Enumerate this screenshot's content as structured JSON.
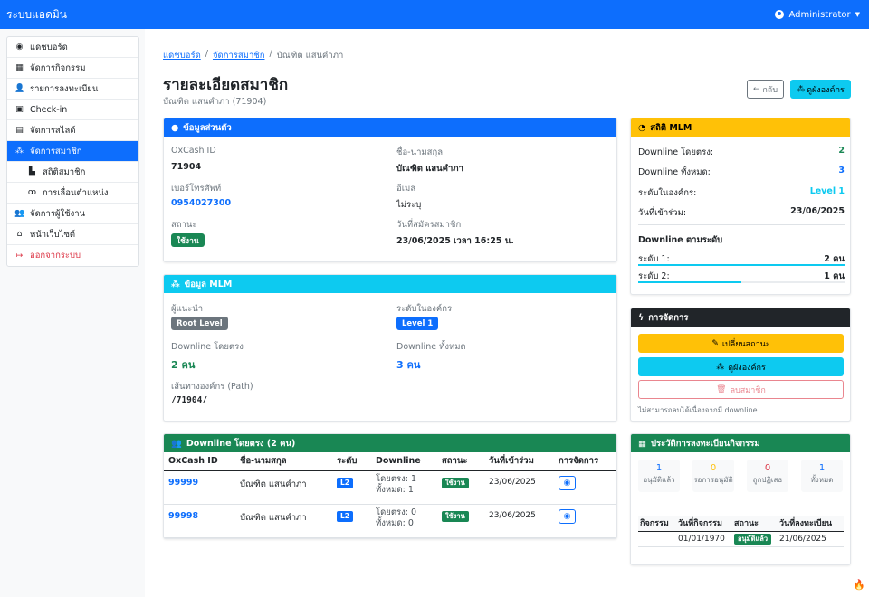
{
  "app": {
    "brand": "ระบบแอดมิน",
    "user": "Administrator"
  },
  "sidebar": {
    "items": [
      {
        "label": "แดชบอร์ด",
        "icon": "dashboard-icon",
        "glyph": "◉"
      },
      {
        "label": "จัดการกิจกรรม",
        "icon": "calendar-icon",
        "glyph": "▦"
      },
      {
        "label": "รายการลงทะเบียน",
        "icon": "user-check-icon",
        "glyph": "👤"
      },
      {
        "label": "Check-in",
        "icon": "qrcode-icon",
        "glyph": "▣"
      },
      {
        "label": "จัดการสไลด์",
        "icon": "images-icon",
        "glyph": "▤"
      },
      {
        "label": "จัดการสมาชิก",
        "icon": "sitemap-icon",
        "glyph": "⁂",
        "active": true
      },
      {
        "label": "สถิติสมาชิก",
        "icon": "chart-icon",
        "glyph": "▙",
        "sub": true
      },
      {
        "label": "การเลื่อนตำแหน่ง",
        "icon": "medal-icon",
        "glyph": "ꝏ",
        "sub": true
      },
      {
        "label": "จัดการผู้ใช้งาน",
        "icon": "users-cog-icon",
        "glyph": "👥"
      },
      {
        "label": "หน้าเว็บไซต์",
        "icon": "home-icon",
        "glyph": "⌂"
      },
      {
        "label": "ออกจากระบบ",
        "icon": "sign-out-icon",
        "glyph": "↦",
        "danger": true
      }
    ]
  },
  "breadcrumb": {
    "home": "แดชบอร์ด",
    "members": "จัดการสมาชิก",
    "current": "บัณฑิต แสนคำภา",
    "sep": "/"
  },
  "page": {
    "title": "รายละเอียดสมาชิก",
    "subtitle": "บัณฑิต แสนคำภา (71904)",
    "back_label": "กลับ",
    "org_label": "ดูผังองค์กร"
  },
  "personal": {
    "header": "ข้อมูลส่วนตัว",
    "oxcash_label": "OxCash ID",
    "oxcash_value": "71904",
    "name_label": "ชื่อ-นามสกุล",
    "name_value": "บัณฑิต แสนคำภา",
    "phone_label": "เบอร์โทรศัพท์",
    "phone_value": "0954027300",
    "email_label": "อีเมล",
    "email_value": "ไม่ระบุ",
    "status_label": "สถานะ",
    "status_value": "ใช้งาน",
    "joined_label": "วันที่สมัครสมาชิก",
    "joined_value": "23/06/2025 เวลา 16:25 น."
  },
  "mlm": {
    "header": "ข้อมูล MLM",
    "sponsor_label": "ผู้แนะนำ",
    "sponsor_value": "Root Level",
    "level_label": "ระดับในองค์กร",
    "level_value": "Level 1",
    "direct_label": "Downline โดยตรง",
    "direct_value": "2 คน",
    "total_label": "Downline ทั้งหมด",
    "total_value": "3 คน",
    "path_label": "เส้นทางองค์กร (Path)",
    "path_value": "/71904/"
  },
  "downline": {
    "header": "Downline โดยตรง (2 คน)",
    "columns": [
      "OxCash ID",
      "ชื่อ-นามสกุล",
      "ระดับ",
      "Downline",
      "สถานะ",
      "วันที่เข้าร่วม",
      "การจัดการ"
    ],
    "rows": [
      {
        "id": "99999",
        "name": "บัณฑิต แสนคำภา",
        "level": "L2",
        "direct": "โดยตรง: 1",
        "total": "ทั้งหมด: 1",
        "status": "ใช้งาน",
        "date": "23/06/2025"
      },
      {
        "id": "99998",
        "name": "บัณฑิต แสนคำภา",
        "level": "L2",
        "direct": "โดยตรง: 0",
        "total": "ทั้งหมด: 0",
        "status": "ใช้งาน",
        "date": "23/06/2025"
      }
    ]
  },
  "stats": {
    "header": "สถิติ MLM",
    "direct_label": "Downline โดยตรง:",
    "direct_value": "2",
    "total_label": "Downline ทั้งหมด:",
    "total_value": "3",
    "level_label": "ระดับในองค์กร:",
    "level_value": "Level 1",
    "joined_label": "วันที่เข้าร่วม:",
    "joined_value": "23/06/2025",
    "by_level_title": "Downline ตามระดับ",
    "levels": [
      {
        "label": "ระดับ 1:",
        "value": "2 คน",
        "fill": 1.0
      },
      {
        "label": "ระดับ 2:",
        "value": "1 คน",
        "fill": 0.5
      }
    ]
  },
  "actions": {
    "header": "การจัดการ",
    "change_status": "เปลี่ยนสถานะ",
    "view_org": "ดูผังองค์กร",
    "delete": "ลบสมาชิก",
    "note": "ไม่สามารถลบได้เนื่องจากมี downline"
  },
  "history": {
    "header": "ประวัติการลงทะเบียนกิจกรรม",
    "stats": [
      {
        "n": "1",
        "label": "อนุมัติแล้ว",
        "color": "#0d6efd"
      },
      {
        "n": "0",
        "label": "รอการอนุมัติ",
        "color": "#ffc107"
      },
      {
        "n": "0",
        "label": "ถูกปฏิเสธ",
        "color": "#dc3545"
      },
      {
        "n": "1",
        "label": "ทั้งหมด",
        "color": "#0d6efd"
      }
    ],
    "columns": [
      "กิจกรรม",
      "วันที่กิจกรรม",
      "สถานะ",
      "วันที่ลงทะเบียน"
    ],
    "rows": [
      {
        "activity": "",
        "date": "01/01/1970",
        "status": "อนุมัติแล้ว",
        "registered": "21/06/2025"
      }
    ]
  },
  "colors": {
    "primary": "#0d6efd",
    "info": "#0dcaf0",
    "success": "#198754",
    "warning": "#ffc107",
    "dark": "#212529",
    "danger": "#dc3545"
  }
}
